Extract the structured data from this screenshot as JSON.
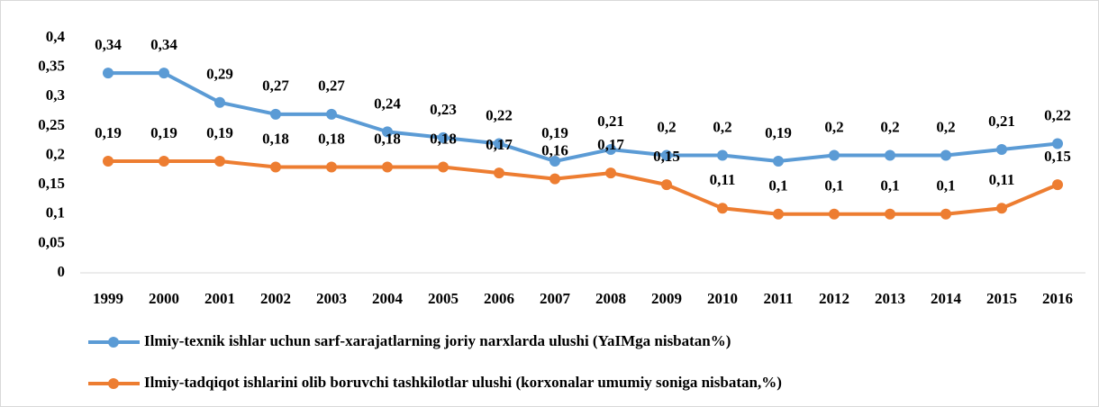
{
  "chart_data": {
    "type": "line",
    "categories": [
      "1999",
      "2000",
      "2001",
      "2002",
      "2003",
      "2004",
      "2005",
      "2006",
      "2007",
      "2008",
      "2009",
      "2010",
      "2011",
      "2012",
      "2013",
      "2014",
      "2015",
      "2016"
    ],
    "series": [
      {
        "name": "Ilmiy-texnik ishlar uchun sarf-xarajatlarning joriy narxlarda ulushi (YaIMga nisbatan%)",
        "color": "#5b9bd5",
        "values": [
          0.34,
          0.34,
          0.29,
          0.27,
          0.27,
          0.24,
          0.23,
          0.22,
          0.19,
          0.21,
          0.2,
          0.2,
          0.19,
          0.2,
          0.2,
          0.2,
          0.21,
          0.22
        ],
        "value_labels": [
          "0,34",
          "0,34",
          "0,29",
          "0,27",
          "0,27",
          "0,24",
          "0,23",
          "0,22",
          "0,19",
          "0,21",
          "0,2",
          "0,2",
          "0,19",
          "0,2",
          "0,2",
          "0,2",
          "0,21",
          "0,22"
        ]
      },
      {
        "name": "Ilmiy-tadqiqot ishlarini olib boruvchi tashkilotlar ulushi (korxonalar umumiy soniga nisbatan,%)",
        "color": "#ed7d31",
        "values": [
          0.19,
          0.19,
          0.19,
          0.18,
          0.18,
          0.18,
          0.18,
          0.17,
          0.16,
          0.17,
          0.15,
          0.11,
          0.1,
          0.1,
          0.1,
          0.1,
          0.11,
          0.15
        ],
        "value_labels": [
          "0,19",
          "0,19",
          "0,19",
          "0,18",
          "0,18",
          "0,18",
          "0,18",
          "0,17",
          "0,16",
          "0,17",
          "0,15",
          "0,11",
          "0,1",
          "0,1",
          "0,1",
          "0,1",
          "0,11",
          "0,15"
        ]
      }
    ],
    "ylim": [
      0,
      0.4
    ],
    "yticks": [
      0,
      {
        "value": 0.05,
        "label": "0,05"
      },
      {
        "value": 0.1,
        "label": "0,1"
      },
      {
        "value": 0.15,
        "label": "0,15"
      },
      {
        "value": 0.2,
        "label": "0,2"
      },
      {
        "value": 0.25,
        "label": "0,25"
      },
      {
        "value": 0.3,
        "label": "0,3"
      },
      {
        "value": 0.35,
        "label": "0,35"
      },
      {
        "value": 0.4,
        "label": "0,4"
      }
    ],
    "grid": false
  }
}
